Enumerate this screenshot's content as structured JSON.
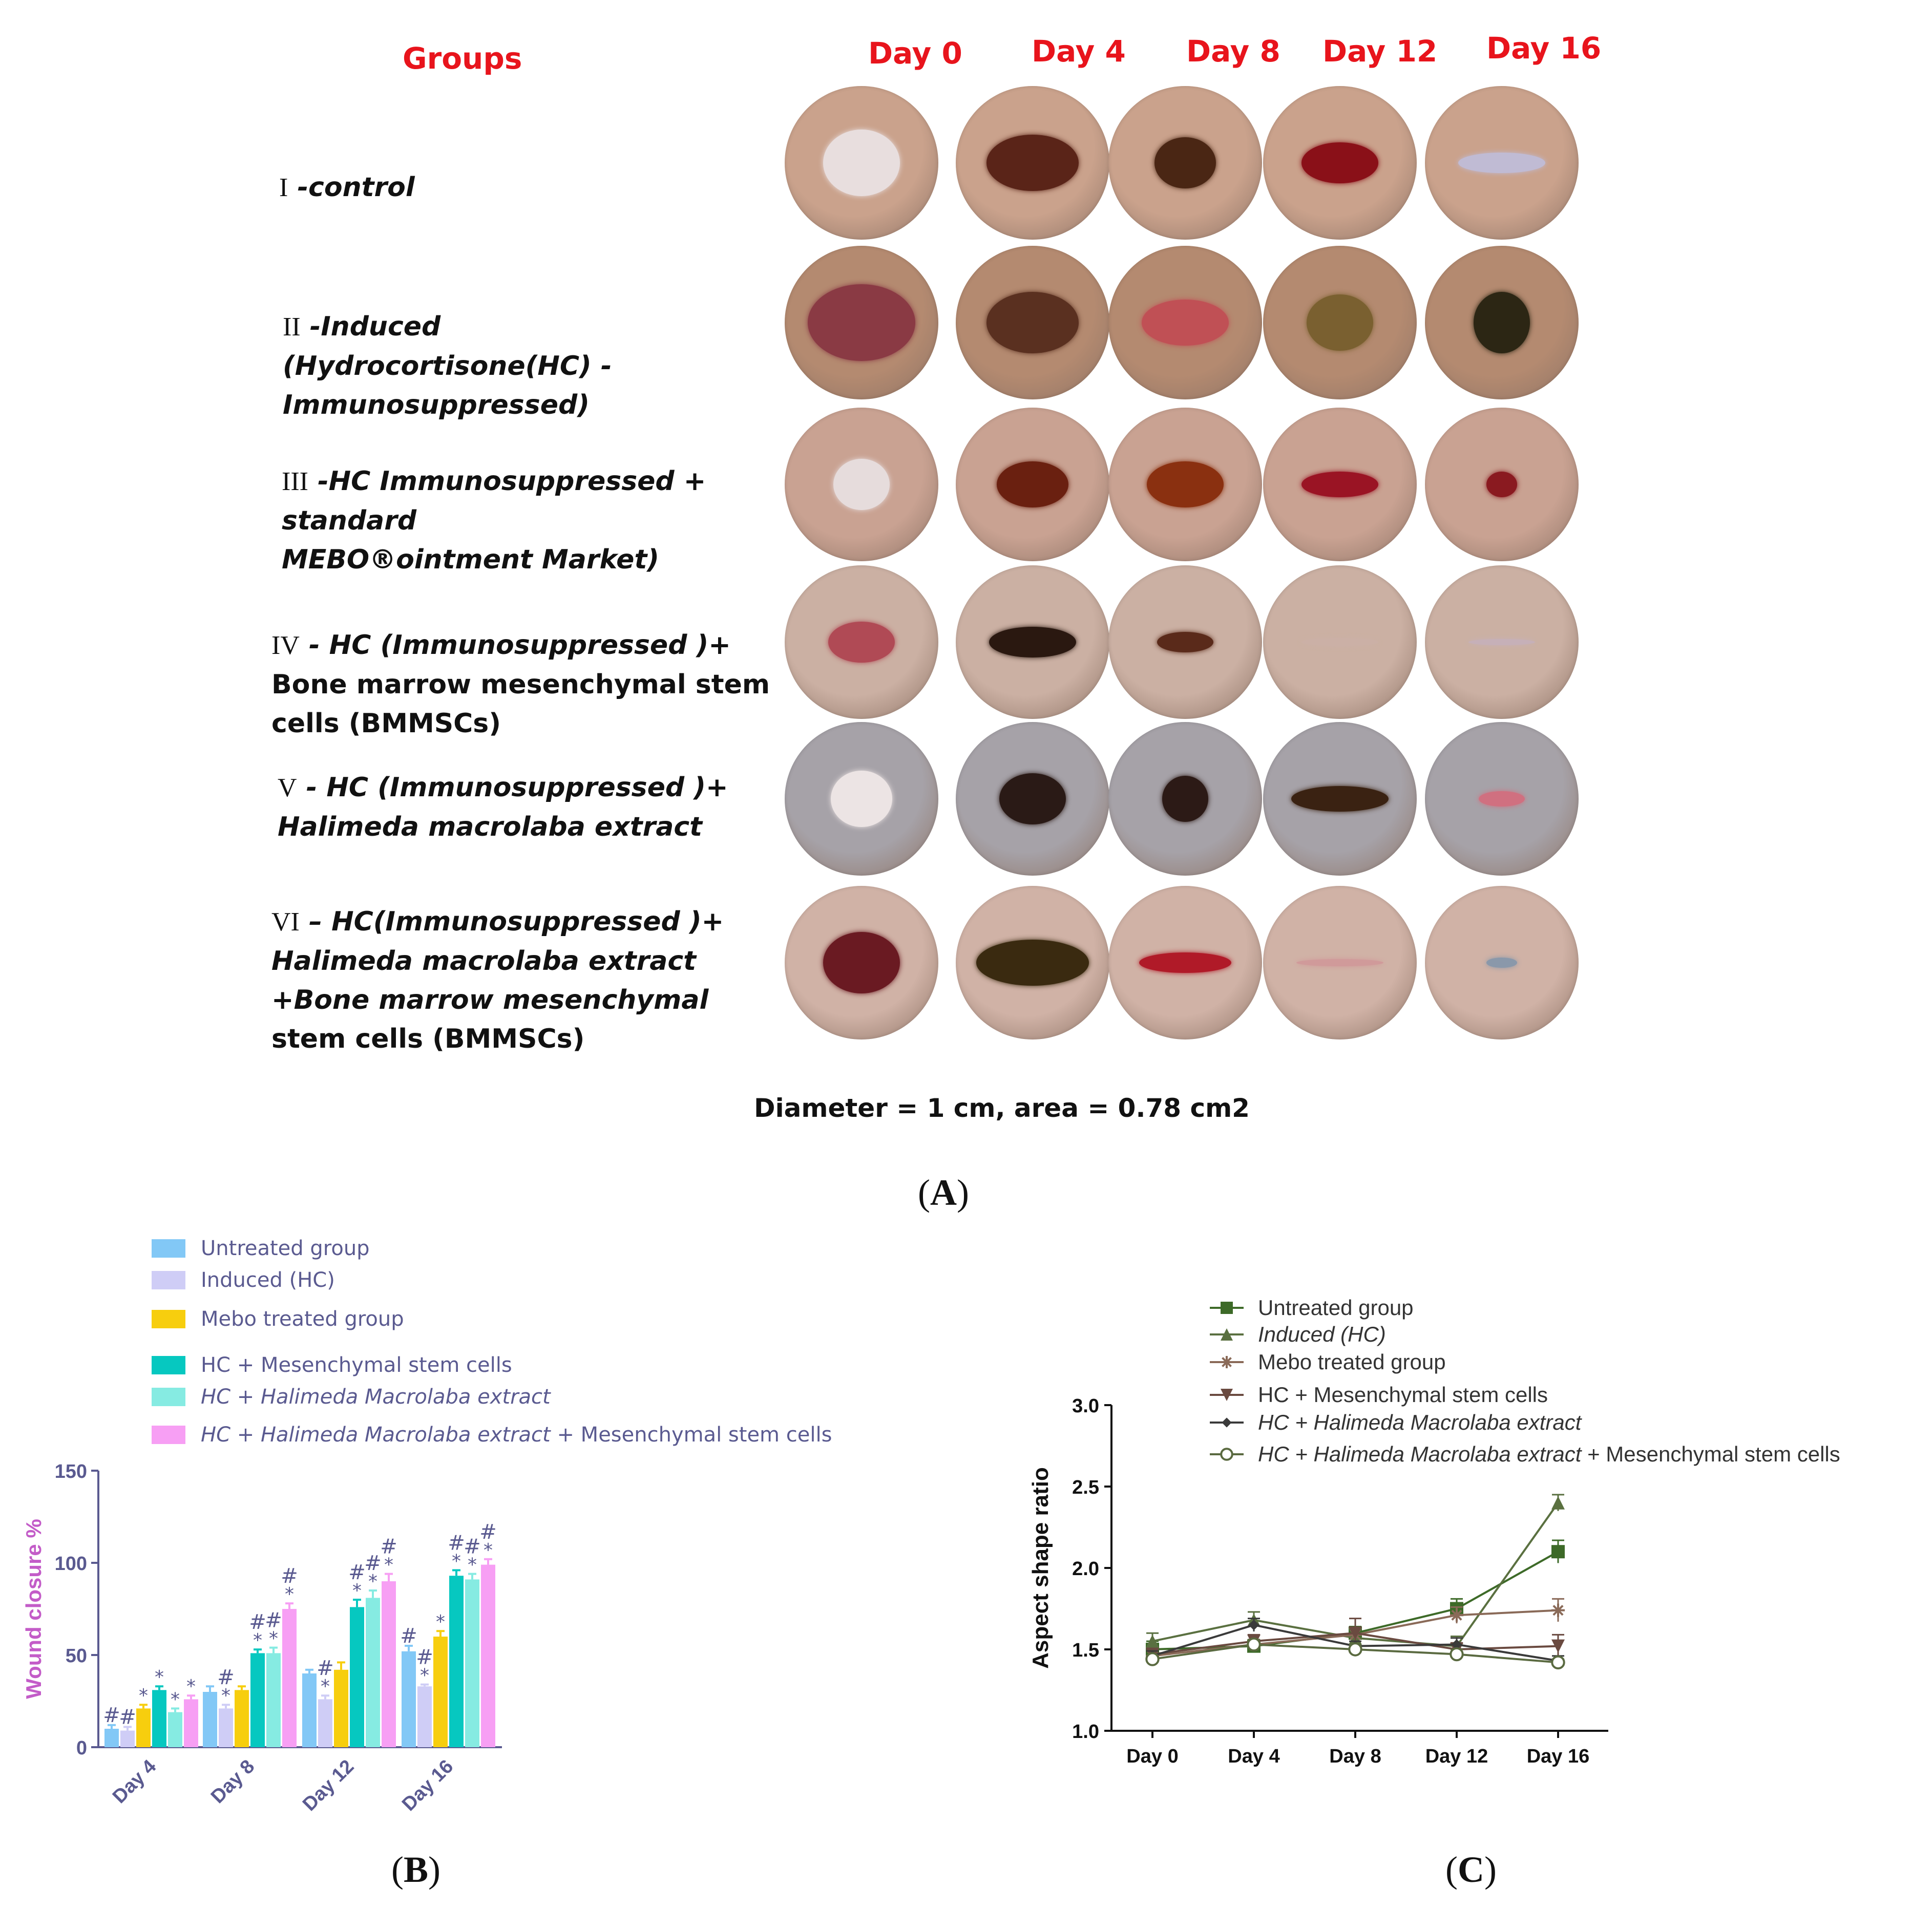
{
  "panelA": {
    "groups_header": "Groups",
    "days": [
      "Day 0",
      "Day 4",
      "Day 8",
      "Day 12",
      "Day 16"
    ],
    "groups": [
      {
        "roman": "I",
        "lines": [
          "-control"
        ]
      },
      {
        "roman": "II",
        "lines": [
          "-Induced",
          "(Hydrocortisone(HC) -",
          "Immunosuppressed)"
        ]
      },
      {
        "roman": "III",
        "lines": [
          "-HC Immunosuppressed +",
          "standard",
          "MEBO®ointment Market)"
        ]
      },
      {
        "roman": "IV",
        "lines": [
          "- HC (Immunosuppressed )+",
          "Bone marrow mesenchymal stem",
          "cells (BMMSCs)"
        ]
      },
      {
        "roman": "V",
        "lines": [
          "- HC (Immunosuppressed )+",
          "Halimeda macrolaba extract"
        ]
      },
      {
        "roman": "VI",
        "lines": [
          "– HC(Immunosuppressed )+",
          "Halimeda macrolaba extract",
          "+Bone marrow mesenchymal",
          "stem cells (BMMSCs)"
        ]
      }
    ],
    "note": "Diameter = 1 cm, area = 0.78 cm2",
    "letter": "A",
    "photo_skin": [
      "#caa28c",
      "#b48a70",
      "#c9a292",
      "#cbb0a3",
      "#a6a2a8",
      "#d0b2a6"
    ],
    "photo_wound": [
      [
        "#e8dede",
        "#5a2418",
        "#4a2614",
        "#8a1018",
        "#c0bbd4"
      ],
      [
        "#8a3a44",
        "#5a3020",
        "#c05055",
        "#7a6030",
        "#2c2614"
      ],
      [
        "#e6dcdc",
        "#6a2010",
        "#8a3010",
        "#9a1424",
        "#8a1a20"
      ],
      [
        "#b04a55",
        "#2a1810",
        "#5a2a1a",
        "#cbb0a6",
        "#c6b0b8"
      ],
      [
        "#ece4e4",
        "#2a1a16",
        "#2c1a16",
        "#3a2212",
        "#d07080"
      ],
      [
        "#6a1a22",
        "#3a2a10",
        "#b01a28",
        "#d09a9a",
        "#8a98aa"
      ]
    ]
  },
  "chart_data": [
    {
      "type": "bar",
      "panel": "B",
      "letter": "B",
      "categories": [
        "Day 4",
        "Day 8",
        "Day 12",
        "Day 16"
      ],
      "ylabel": "Wound closure %",
      "xlabel": "",
      "ylim": [
        0,
        150
      ],
      "yticks": [
        "0",
        "50",
        "100",
        "150"
      ],
      "series": [
        {
          "name": "Untreated group",
          "color": "#82c8f6",
          "values": [
            10,
            30,
            40,
            52
          ],
          "errors": [
            2,
            3,
            2,
            3
          ],
          "marks": [
            "#",
            "",
            "",
            "#"
          ]
        },
        {
          "name": "Induced (HC)",
          "color": "#cfcdf6",
          "values": [
            9,
            21,
            26,
            33
          ],
          "errors": [
            2,
            2,
            2,
            1
          ],
          "marks": [
            "#",
            "#*",
            "#*",
            "#*"
          ]
        },
        {
          "name": "Mebo treated group",
          "color": "#f7ce0e",
          "values": [
            21,
            31,
            42,
            60
          ],
          "errors": [
            2,
            2,
            4,
            3
          ],
          "marks": [
            "*",
            "",
            "",
            "*"
          ]
        },
        {
          "name": "HC + Mesenchymal stem cells",
          "color": "#06c8c0",
          "values": [
            31,
            51,
            76,
            93
          ],
          "errors": [
            2,
            2,
            4,
            3
          ],
          "marks": [
            "*",
            "#*",
            "#*",
            "#*"
          ]
        },
        {
          "name": "HC + Halimeda Macrolaba extract",
          "color": "#86ebe2",
          "values": [
            19,
            51,
            81,
            91
          ],
          "errors": [
            2,
            3,
            4,
            3
          ],
          "marks": [
            "*",
            "#*",
            "#*",
            "#*"
          ]
        },
        {
          "name": "HC + Halimeda Macrolaba extract + Mesenchymal stem cells",
          "color": "#f79ff4",
          "values": [
            26,
            75,
            90,
            99
          ],
          "errors": [
            2,
            3,
            4,
            3
          ],
          "marks": [
            "*",
            "#*",
            "#*",
            "#*"
          ]
        }
      ],
      "legend": [
        {
          "pre": "Untreated group",
          "ital": "",
          "post": ""
        },
        {
          "pre": "Induced (HC)",
          "ital": "",
          "post": ""
        },
        {
          "pre": "Mebo treated group",
          "ital": "",
          "post": ""
        },
        {
          "pre": "HC + Mesenchymal stem cells",
          "ital": "",
          "post": ""
        },
        {
          "pre": "",
          "ital": "HC + Halimeda Macrolaba extract",
          "post": ""
        },
        {
          "pre": "",
          "ital": "HC + Halimeda Macrolaba extract",
          "post": " + Mesenchymal stem cells"
        }
      ]
    },
    {
      "type": "line",
      "panel": "C",
      "letter": "C",
      "x": [
        "Day 0",
        "Day 4",
        "Day 8",
        "Day 12",
        "Day 16"
      ],
      "ylabel": "Aspect shape ratio",
      "xlabel": "",
      "ylim": [
        1.0,
        3.0
      ],
      "yticks": [
        "1.0",
        "1.5",
        "2.0",
        "2.5",
        "3.0"
      ],
      "series": [
        {
          "name": "Untreated group",
          "marker": "square",
          "color": "#3d6a28",
          "values": [
            1.5,
            1.52,
            1.6,
            1.75,
            2.1
          ],
          "errors": [
            0.05,
            0.03,
            0.04,
            0.06,
            0.07
          ]
        },
        {
          "name": "Induced (HC)",
          "marker": "triangle",
          "color": "#5a7040",
          "values": [
            1.55,
            1.68,
            1.57,
            1.52,
            2.4
          ],
          "errors": [
            0.05,
            0.05,
            0.05,
            0.06,
            0.05
          ]
        },
        {
          "name": "Mebo treated group",
          "marker": "asterisk",
          "color": "#8a6a58",
          "values": [
            1.46,
            1.53,
            1.59,
            1.71,
            1.74
          ],
          "errors": [
            0.04,
            0.03,
            0.04,
            0.05,
            0.07
          ]
        },
        {
          "name": "HC + Mesenchymal stem cells",
          "marker": "tri-down",
          "color": "#6a4a40",
          "values": [
            1.47,
            1.55,
            1.6,
            1.5,
            1.52
          ],
          "errors": [
            0.03,
            0.04,
            0.09,
            0.04,
            0.07
          ]
        },
        {
          "name": "HC + Halimeda Macrolaba extract",
          "marker": "diamond",
          "color": "#3a3a3a",
          "values": [
            1.46,
            1.65,
            1.52,
            1.53,
            1.43
          ],
          "errors": [
            0.03,
            0.04,
            0.03,
            0.04,
            0.03
          ]
        },
        {
          "name": "HC + Halimeda Macrolaba extract + Mesenchymal stem cells",
          "marker": "circle",
          "color": "#5a6a40",
          "values": [
            1.44,
            1.53,
            1.5,
            1.47,
            1.42
          ],
          "errors": [
            0.02,
            0.03,
            0.03,
            0.03,
            0.02
          ]
        }
      ],
      "legend": [
        {
          "pre": "Untreated group",
          "ital": "",
          "post": ""
        },
        {
          "pre": "",
          "ital": "Induced (HC)",
          "post": ""
        },
        {
          "pre": "Mebo treated group",
          "ital": "",
          "post": ""
        },
        {
          "pre": "HC + Mesenchymal stem cells",
          "ital": "",
          "post": ""
        },
        {
          "pre": "",
          "ital": "HC + Halimeda Macrolaba extract",
          "post": ""
        },
        {
          "pre": "",
          "ital": "HC + Halimeda Macrolaba extract",
          "post": " + Mesenchymal stem cells"
        }
      ]
    }
  ]
}
